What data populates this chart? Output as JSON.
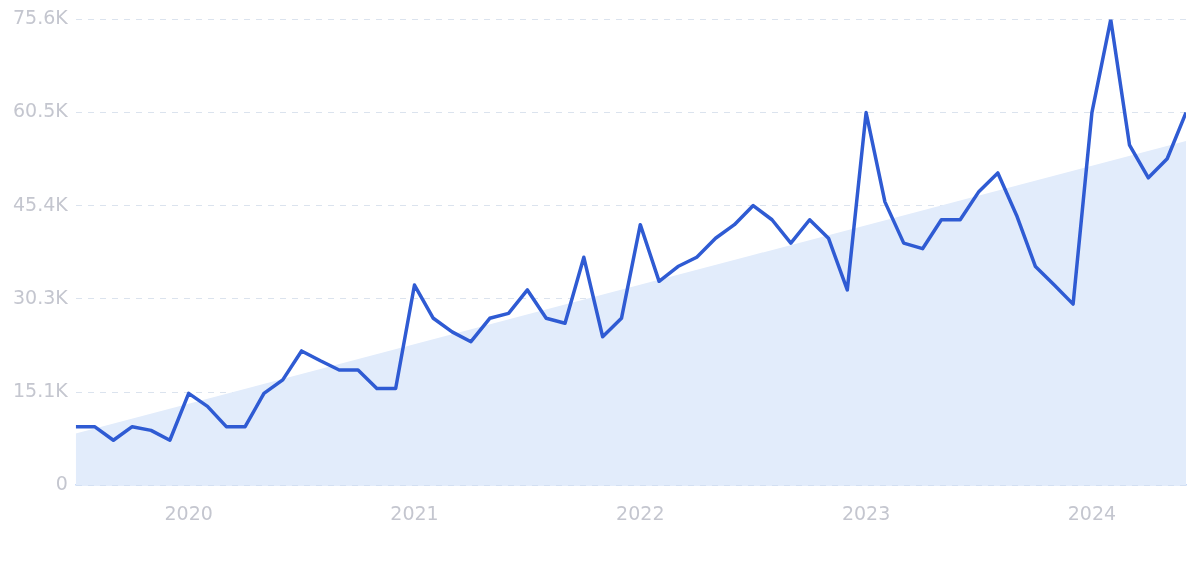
{
  "chart_data": {
    "type": "line",
    "x": [
      "2019-07",
      "2019-08",
      "2019-09",
      "2019-10",
      "2019-11",
      "2019-12",
      "2020-01",
      "2020-02",
      "2020-03",
      "2020-04",
      "2020-05",
      "2020-06",
      "2020-07",
      "2020-08",
      "2020-09",
      "2020-10",
      "2020-11",
      "2020-12",
      "2021-01",
      "2021-02",
      "2021-03",
      "2021-04",
      "2021-05",
      "2021-06",
      "2021-07",
      "2021-08",
      "2021-09",
      "2021-10",
      "2021-11",
      "2021-12",
      "2022-01",
      "2022-02",
      "2022-03",
      "2022-04",
      "2022-05",
      "2022-06",
      "2022-07",
      "2022-08",
      "2022-09",
      "2022-10",
      "2022-11",
      "2022-12",
      "2023-01",
      "2023-02",
      "2023-03",
      "2023-04",
      "2023-05",
      "2023-06",
      "2023-07",
      "2023-08",
      "2023-09",
      "2023-10",
      "2023-11",
      "2023-12",
      "2024-01",
      "2024-02",
      "2024-03",
      "2024-04",
      "2024-05",
      "2024-06"
    ],
    "series": [
      {
        "type": "area",
        "color": "#e2ecfb",
        "x": [
          "2019-07",
          "2024-06"
        ],
        "values": [
          8400,
          55900
        ]
      },
      {
        "type": "line",
        "color": "#2f5bd3",
        "values": [
          9500,
          9500,
          7300,
          9500,
          8900,
          7300,
          14900,
          12800,
          9500,
          9500,
          14900,
          17100,
          21800,
          20200,
          18700,
          18700,
          15700,
          15700,
          32500,
          27100,
          24900,
          23300,
          27100,
          27900,
          31700,
          27100,
          26300,
          37000,
          24100,
          27100,
          42300,
          33100,
          35500,
          37000,
          40100,
          42300,
          45400,
          43100,
          39300,
          43100,
          40100,
          31700,
          60500,
          46000,
          39300,
          38400,
          43100,
          43100,
          47700,
          50700,
          43800,
          35500,
          32500,
          29400,
          60500,
          75600,
          55200,
          49900,
          53000,
          60500
        ]
      }
    ],
    "xlim": [
      "2019-07",
      "2024-06"
    ],
    "xticks": [
      "2020",
      "2021",
      "2022",
      "2023",
      "2024"
    ],
    "ylim": [
      0,
      75625
    ],
    "yticks": [
      0,
      {
        "value": 15125,
        "label": "15.1K"
      },
      {
        "value": 30250,
        "label": "30.3K"
      },
      {
        "value": 45375,
        "label": "45.4K"
      },
      {
        "value": 60500,
        "label": "60.5K"
      },
      {
        "value": 75625,
        "label": "75.6K"
      }
    ],
    "grid": "y",
    "line_style": "solid",
    "marker": "none",
    "legend": false
  }
}
